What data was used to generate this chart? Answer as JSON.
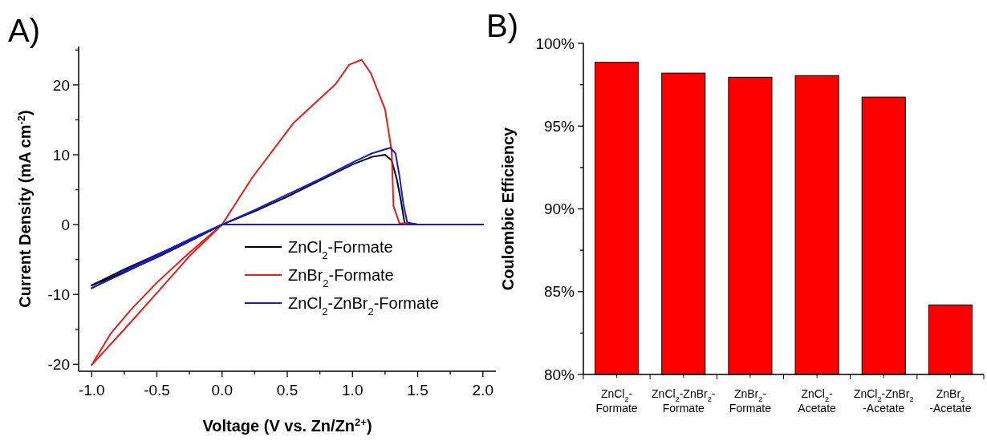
{
  "chart_data": [
    {
      "type": "line",
      "title": "A)",
      "xlabel": "Voltage (V vs. Zn/Zn$^{2+}$)",
      "ylabel": "Current Density (mA cm$^{-2}$)",
      "xlim": [
        -1.1,
        2.1
      ],
      "ylim": [
        -21,
        25.5
      ],
      "xticks": [
        {
          "value": -1,
          "label": "-1.0"
        },
        {
          "value": -0.75,
          "label": null
        },
        -0.5,
        {
          "value": -0.25,
          "label": null
        },
        {
          "value": 0,
          "label": "0.0"
        },
        {
          "value": 0.25,
          "label": null
        },
        0.5,
        {
          "value": 0.75,
          "label": null
        },
        {
          "value": 1,
          "label": "1.0"
        },
        {
          "value": 1.25,
          "label": null
        },
        1.5,
        {
          "value": 1.75,
          "label": null
        },
        {
          "value": 2,
          "label": "2.0"
        }
      ],
      "yticks": [
        -20,
        {
          "value": -15,
          "label": null
        },
        -10,
        {
          "value": -5,
          "label": null
        },
        0,
        {
          "value": 5,
          "label": null
        },
        10,
        {
          "value": 15,
          "label": null
        },
        20,
        {
          "value": 25,
          "label": null
        }
      ],
      "legend": "bottom right",
      "grid": false,
      "marker": "none",
      "line_style": "solid",
      "series": [
        {
          "name": "ZnCl$_{2}$-Formate",
          "color": "#000000",
          "x": [
            -1,
            -0.75,
            -0.5,
            -0.25,
            0,
            0.25,
            0.5,
            0.75,
            1.0,
            1.15,
            1.25,
            1.3,
            1.34,
            1.37,
            1.4,
            1.5,
            2.0
          ],
          "values": [
            -8.7,
            -6.4,
            -4.3,
            -2.2,
            0,
            1.9,
            4.0,
            6.3,
            8.6,
            9.7,
            10.0,
            9.2,
            6.5,
            3.6,
            0.2,
            0,
            0
          ]
        },
        {
          "name": "ZnBr$_{2}$-Formate",
          "color": "#e0201e",
          "x": [
            -1,
            -0.85,
            -0.7,
            -0.5,
            -0.25,
            0,
            0.23,
            0.55,
            0.87,
            0.975,
            1.07,
            1.14,
            1.25,
            1.3,
            1.315,
            1.36,
            1.5,
            2.0
          ],
          "values": [
            -20.1,
            -15.5,
            -12.2,
            -8.3,
            -4,
            0,
            6.7,
            14.6,
            20.1,
            22.9,
            23.6,
            21.7,
            16.5,
            10.6,
            2.6,
            0.2,
            0,
            0
          ]
        },
        {
          "name": "ZnCl$_{2}$-ZnBr$_{2}$-Formate",
          "color": "#1a1acc",
          "x": [
            -1,
            -0.75,
            -0.5,
            -0.25,
            0,
            0.25,
            0.5,
            0.75,
            1.0,
            1.15,
            1.29,
            1.33,
            1.36,
            1.39,
            1.42,
            1.5,
            2.0
          ],
          "values": [
            -9.1,
            -6.6,
            -4.4,
            -2.1,
            0,
            2.1,
            4.3,
            6.5,
            8.9,
            10.2,
            11.0,
            10.2,
            7.0,
            3.0,
            0.3,
            0,
            0
          ]
        },
        {
          "color": "#000000",
          "x": [
            -1,
            -0.75,
            -0.5,
            -0.25,
            0
          ],
          "values": [
            -8.7,
            -6.8,
            -4.7,
            -2.4,
            0
          ]
        },
        {
          "color": "#e0201e",
          "x": [
            -1,
            -0.75,
            -0.5,
            -0.25,
            0
          ],
          "values": [
            -20.1,
            -15,
            -9.8,
            -4.5,
            0
          ]
        },
        {
          "color": "#1a1acc",
          "x": [
            -1,
            -0.75,
            -0.5,
            -0.25,
            0,
            1.0,
            2.0
          ],
          "values": [
            -9.1,
            -6.9,
            -4.6,
            -2.3,
            0,
            0,
            0
          ]
        }
      ]
    },
    {
      "type": "bar",
      "title": "B)",
      "ylabel": "Coulombic Efficiency",
      "categories": [
        "ZnCl$_{2}$-\nFormate",
        "ZnCl$_{2}$-ZnBr$_{2}$-\nFormate",
        "ZnBr$_{2}$-\nFormate",
        "ZnCl$_{2}$-\nAcetate",
        "ZnCl$_{2}$-ZnBr$_{2}$\n-Acetate",
        "ZnBr$_{2}$\n-Acetate"
      ],
      "values": [
        98.85,
        98.2,
        97.95,
        98.05,
        96.75,
        84.2
      ],
      "color": "#ff0000",
      "ylim": [
        80,
        100
      ],
      "yticks": [
        {
          "value": 80,
          "label": "80%"
        },
        {
          "value": 82.5,
          "label": null
        },
        {
          "value": 85,
          "label": "85%"
        },
        {
          "value": 87.5,
          "label": null
        },
        {
          "value": 90,
          "label": "90%"
        },
        {
          "value": 92.5,
          "label": null
        },
        {
          "value": 95,
          "label": "95%"
        },
        {
          "value": 97.5,
          "label": null
        },
        {
          "value": 100,
          "label": "100%"
        }
      ],
      "grid": false
    }
  ]
}
